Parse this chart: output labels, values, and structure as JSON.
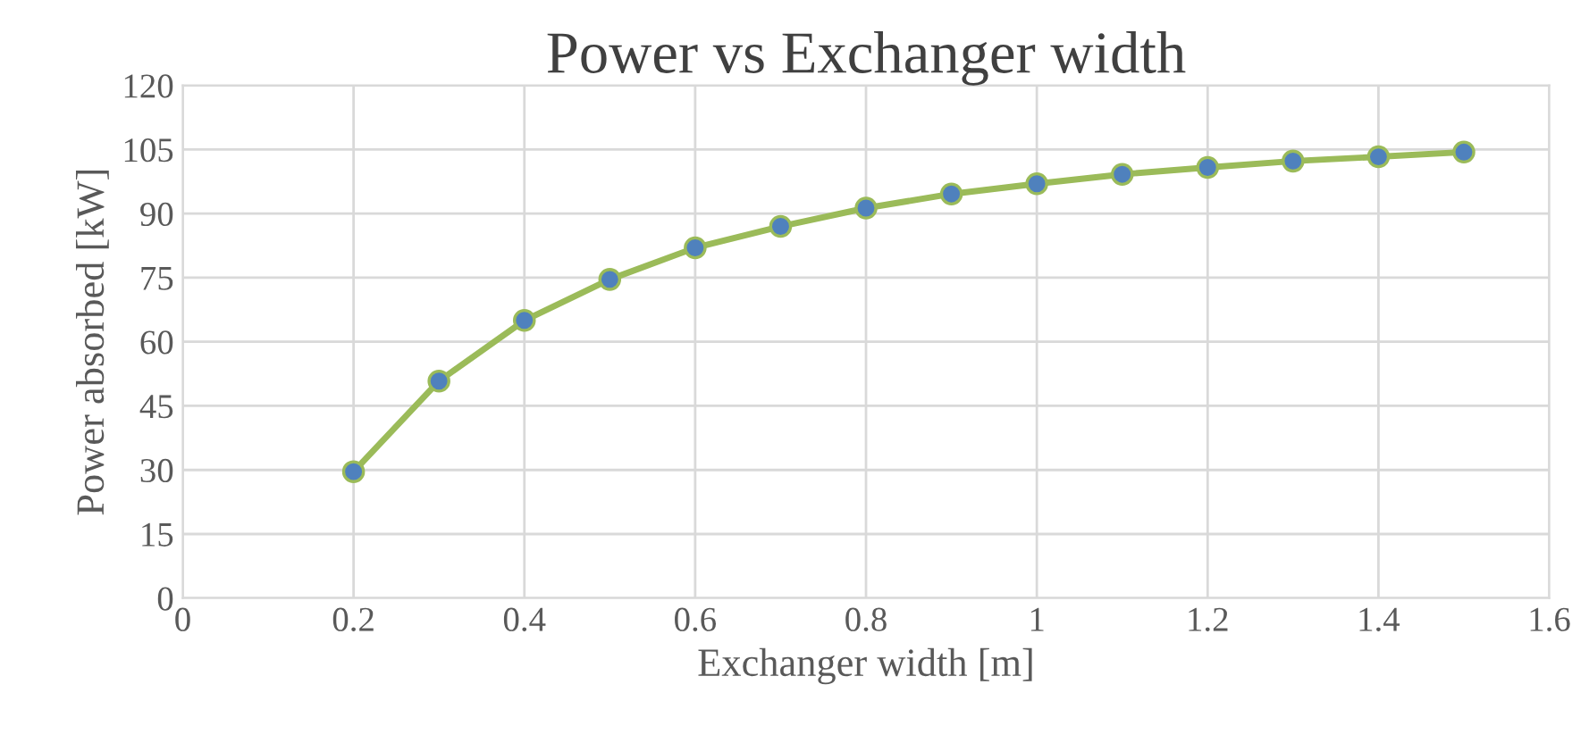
{
  "chart_data": {
    "type": "line",
    "title": "Power vs Exchanger width",
    "xlabel": "Exchanger width [m]",
    "ylabel": "Power absorbed [kW]",
    "x": [
      0.2,
      0.3,
      0.4,
      0.5,
      0.6,
      0.7,
      0.8,
      0.9,
      1.0,
      1.1,
      1.2,
      1.3,
      1.4,
      1.5
    ],
    "series": [
      {
        "color": "#9bbb59",
        "values": [
          29.6,
          50.8,
          65,
          74.6,
          82,
          87,
          91.3,
          94.6,
          97,
          99.2,
          100.8,
          102.3,
          103.3,
          104.4
        ]
      }
    ],
    "xlim": [
      0,
      1.6
    ],
    "xticks": [
      0,
      0.2,
      0.4,
      0.6,
      0.8,
      1,
      1.2,
      1.4,
      1.6
    ],
    "ylim": [
      0,
      120
    ],
    "yticks": [
      0,
      15,
      30,
      45,
      60,
      75,
      90,
      105,
      120
    ],
    "grid": true,
    "marker": "circle",
    "line_style": "solid"
  }
}
